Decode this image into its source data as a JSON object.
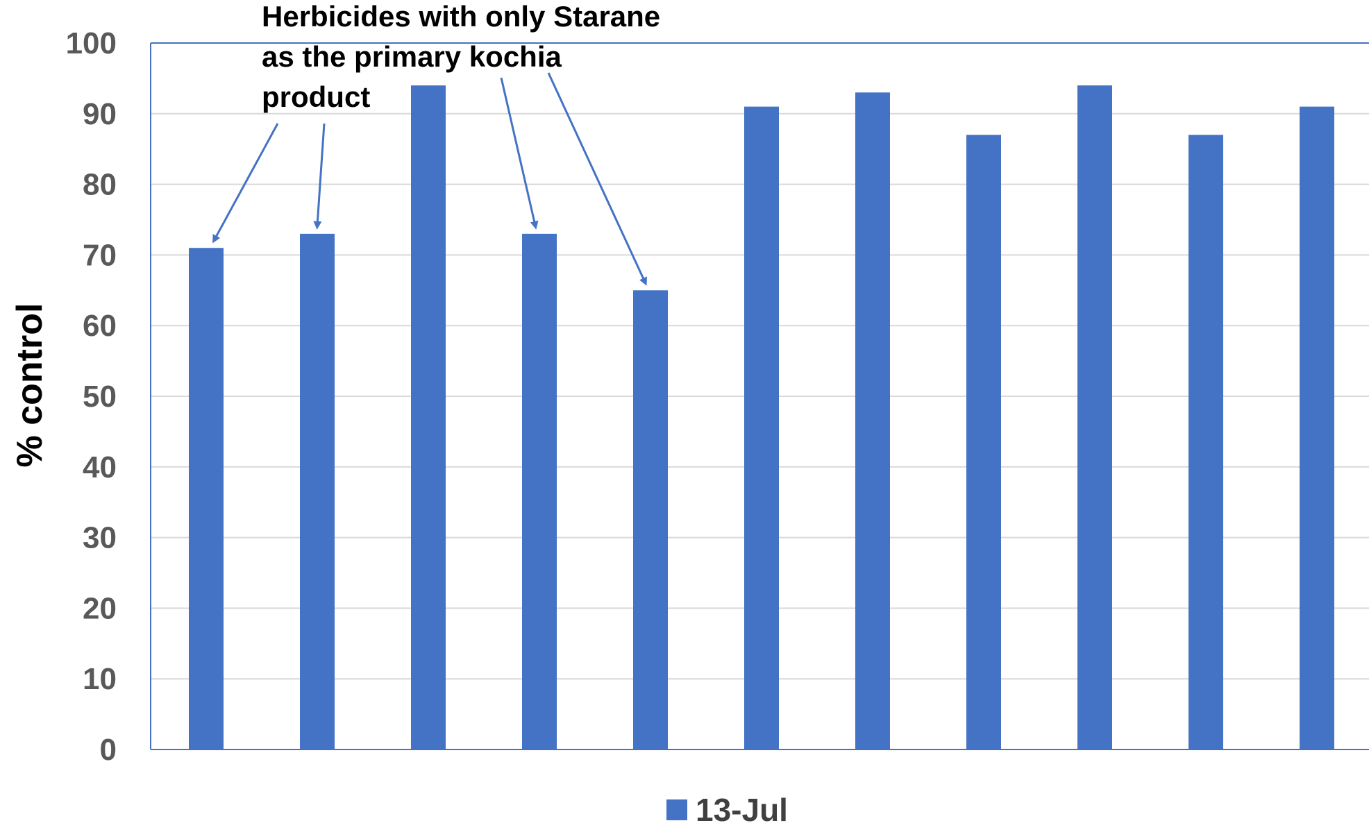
{
  "chart_data": {
    "type": "bar",
    "categories": [
      "",
      "",
      "",
      "",
      "",
      "",
      "",
      "",
      "",
      "",
      ""
    ],
    "series": [
      {
        "name": "13-Jul",
        "values": [
          71,
          73,
          94,
          73,
          65,
          91,
          93,
          87,
          94,
          87,
          91
        ]
      }
    ],
    "xlabel": "",
    "ylabel": "% control",
    "ylim": [
      0,
      100
    ],
    "yticks": [
      "0",
      "10",
      "20",
      "30",
      "40",
      "50",
      "60",
      "70",
      "80",
      "90",
      "100"
    ],
    "grid": true,
    "legend": "bottom",
    "colors": {
      "bar": "#4472C4",
      "grid": "#D9D9D9",
      "axis": "#4472C4",
      "arrow": "#4472C4"
    },
    "annotation": {
      "lines": [
        "Herbicides with only Starane",
        "as the primary kochia",
        "product"
      ],
      "points_to_bars": [
        0,
        1,
        3,
        4
      ]
    }
  }
}
